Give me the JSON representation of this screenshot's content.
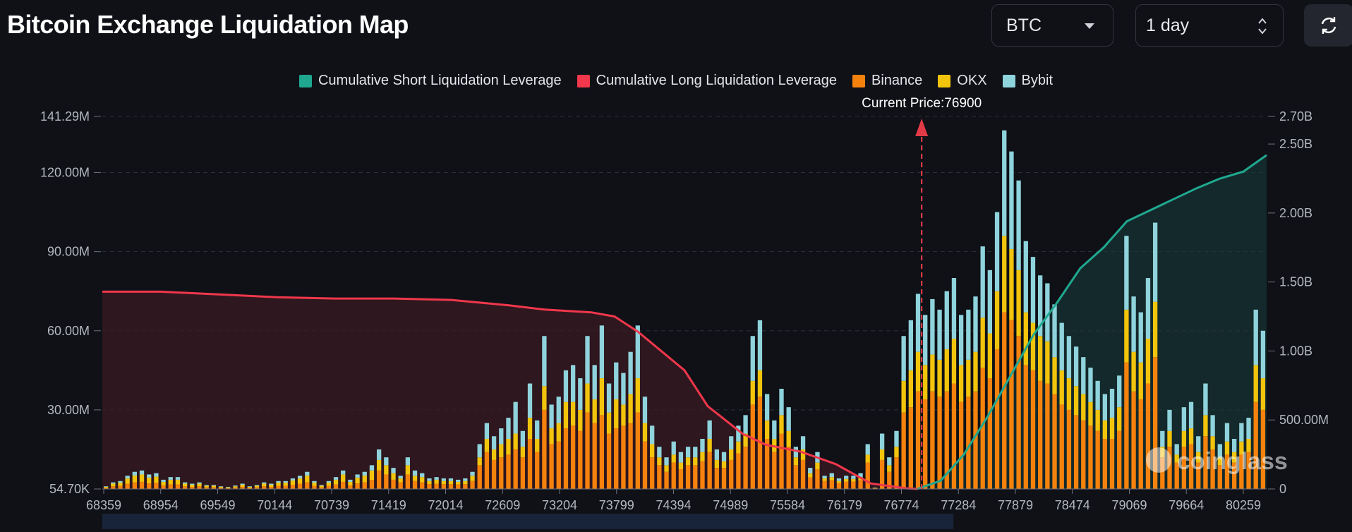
{
  "header": {
    "title": "Bitcoin Exchange Liquidation Map",
    "coin_select": "BTC",
    "range_select": "1 day"
  },
  "legend": [
    {
      "label": "Cumulative Short Liquidation Leverage",
      "color": "#1fa88f"
    },
    {
      "label": "Cumulative Long Liquidation Leverage",
      "color": "#f0374b"
    },
    {
      "label": "Binance",
      "color": "#f5820d"
    },
    {
      "label": "OKX",
      "color": "#f2c40c"
    },
    {
      "label": "Bybit",
      "color": "#8fd3dc"
    }
  ],
  "current_price_label": "Current Price:76900",
  "watermark": "coinglass",
  "chart_data": {
    "type": "bar",
    "left_axis_ticks": [
      "141.29M",
      "120.00M",
      "90.00M",
      "60.00M",
      "30.00M",
      "54.70K"
    ],
    "right_axis_ticks": [
      "2.70B",
      "2.50B",
      "2.00B",
      "1.50B",
      "1.00B",
      "500.00M",
      "0"
    ],
    "x_tick_labels": [
      "68359",
      "68954",
      "69549",
      "70144",
      "70739",
      "71419",
      "72014",
      "72609",
      "73204",
      "73799",
      "74394",
      "74989",
      "75584",
      "76179",
      "76774",
      "77284",
      "77879",
      "78474",
      "79069",
      "79664",
      "80259"
    ],
    "left_ylim": [
      0,
      141.29
    ],
    "left_unit": "M",
    "right_ylim": [
      0,
      2.7
    ],
    "right_unit": "B",
    "current_price": 76900,
    "bar_totals_M": [
      1,
      2.5,
      3,
      5,
      6.5,
      7,
      5.5,
      6,
      3.5,
      4.5,
      4.5,
      2.5,
      2,
      2.5,
      1.5,
      1.5,
      1,
      0.8,
      1.3,
      2,
      1,
      1.5,
      2.5,
      2,
      3,
      3,
      4,
      5,
      6.5,
      3,
      1.5,
      3,
      4.5,
      7,
      3.5,
      5.5,
      6.5,
      9,
      15,
      12,
      8,
      5,
      12,
      7,
      6,
      4,
      4.5,
      4,
      4,
      3.5,
      4,
      6.5,
      17,
      25,
      20,
      23,
      27,
      33,
      22,
      40,
      26,
      58,
      32,
      35,
      45,
      47,
      42,
      58,
      47,
      62,
      40,
      48,
      44,
      52,
      62,
      35,
      24,
      16,
      12,
      18,
      14,
      16,
      16,
      19,
      26,
      15,
      14,
      20,
      24,
      28,
      58,
      64,
      36,
      26,
      38,
      31,
      16,
      20,
      8,
      14,
      5,
      6,
      4,
      5,
      5,
      6,
      17,
      0.5,
      21,
      12,
      22,
      58,
      64,
      74,
      66,
      72,
      68,
      75,
      80,
      66,
      68,
      73,
      92,
      83,
      105,
      136,
      128,
      117,
      94,
      88,
      81,
      78,
      70,
      63,
      58,
      54,
      50,
      46,
      41,
      36,
      38,
      43,
      96,
      73,
      67,
      80,
      101,
      22,
      30,
      17,
      31,
      33,
      20,
      40,
      28,
      17,
      25,
      19,
      25,
      27,
      68,
      60
    ],
    "bar_okx_M": [
      0.4,
      1,
      1.2,
      2,
      2.6,
      2.8,
      2.2,
      2.4,
      1.4,
      1.8,
      1.8,
      1,
      0.8,
      1,
      0.6,
      0.6,
      0.4,
      0.3,
      0.5,
      0.8,
      0.4,
      0.6,
      1,
      0.8,
      1.2,
      1.2,
      1.6,
      2,
      2.6,
      1.2,
      0.6,
      1.2,
      1.8,
      2.8,
      1.4,
      2.2,
      2.6,
      3.6,
      4,
      3.5,
      2.5,
      1.5,
      3.5,
      2,
      2,
      1.2,
      1.5,
      1.2,
      1.2,
      1,
      1.2,
      2,
      3,
      5,
      4,
      5,
      6,
      6,
      4,
      8,
      5,
      9,
      6,
      7,
      10,
      9,
      8,
      11,
      9,
      14,
      8,
      11,
      8,
      11,
      13,
      7,
      5,
      3,
      2.5,
      3,
      2.5,
      3,
      3,
      3.5,
      5,
      3,
      2.5,
      4,
      4.5,
      5,
      9,
      10,
      7,
      5,
      7,
      6,
      3,
      4,
      1.6,
      2.5,
      1,
      1.2,
      0.8,
      1,
      1,
      1.2,
      3,
      0.1,
      4,
      2.5,
      4,
      12,
      14,
      15,
      13,
      14,
      14,
      16,
      17,
      14,
      14,
      15,
      19,
      17,
      22,
      29,
      27,
      25,
      20,
      18,
      17,
      16,
      14,
      13,
      12,
      11,
      10,
      9,
      8,
      7,
      8,
      9,
      20,
      15,
      14,
      17,
      21,
      4,
      6,
      3,
      6,
      6,
      4,
      8,
      5,
      3,
      5,
      4,
      5,
      5,
      14,
      12
    ],
    "bar_bybit_M": [
      0.2,
      0.5,
      0.6,
      1,
      1.4,
      1.5,
      1.2,
      1.3,
      0.8,
      1,
      1,
      0.5,
      0.4,
      0.5,
      0.3,
      0.3,
      0.2,
      0.2,
      0.3,
      0.4,
      0.2,
      0.3,
      0.5,
      0.4,
      0.6,
      0.6,
      0.8,
      1,
      1.4,
      0.6,
      0.3,
      0.6,
      1,
      1.5,
      0.8,
      1.2,
      1.4,
      2,
      4,
      3,
      2,
      1,
      3,
      2,
      1.5,
      1,
      1,
      1,
      1,
      0.8,
      1,
      1.5,
      5,
      6,
      5,
      6,
      8,
      12,
      6,
      13,
      7,
      19,
      9,
      10,
      12,
      14,
      12,
      18,
      13,
      20,
      11,
      14,
      12,
      16,
      20,
      10,
      7,
      4,
      3,
      5,
      4,
      4,
      4,
      5,
      7,
      4,
      3.5,
      5,
      6,
      7,
      17,
      19,
      10,
      7,
      10,
      9,
      4,
      5,
      2,
      4,
      1,
      1.5,
      1,
      1.2,
      1.2,
      1.5,
      4,
      0.1,
      6,
      3,
      6,
      17,
      19,
      22,
      19,
      21,
      19,
      22,
      23,
      19,
      19,
      21,
      27,
      24,
      30,
      40,
      37,
      34,
      27,
      25,
      23,
      22,
      20,
      18,
      16,
      15,
      14,
      13,
      11,
      10,
      11,
      12,
      28,
      21,
      19,
      23,
      30,
      6,
      8,
      4,
      9,
      10,
      6,
      12,
      8,
      5,
      7,
      5,
      7,
      8,
      21,
      18
    ],
    "series": [
      {
        "name": "Cumulative Long Liquidation Leverage",
        "unit": "B",
        "x_frac": [
          0,
          0.05,
          0.1,
          0.15,
          0.2,
          0.25,
          0.3,
          0.35,
          0.38,
          0.4,
          0.42,
          0.44,
          0.46,
          0.5,
          0.52,
          0.55,
          0.57,
          0.6,
          0.63,
          0.66,
          0.69,
          0.7
        ],
        "values": [
          1.43,
          1.43,
          1.41,
          1.39,
          1.38,
          1.38,
          1.37,
          1.33,
          1.3,
          1.29,
          1.28,
          1.25,
          1.14,
          0.86,
          0.6,
          0.4,
          0.32,
          0.27,
          0.18,
          0.04,
          0.005,
          0
        ]
      },
      {
        "name": "Cumulative Short Liquidation Leverage",
        "unit": "B",
        "x_frac": [
          0.7,
          0.72,
          0.74,
          0.76,
          0.78,
          0.8,
          0.82,
          0.84,
          0.86,
          0.88,
          0.9,
          0.92,
          0.94,
          0.96,
          0.98,
          1.0
        ],
        "values": [
          0,
          0.06,
          0.25,
          0.52,
          0.82,
          1.12,
          1.35,
          1.6,
          1.75,
          1.94,
          2.02,
          2.1,
          2.18,
          2.25,
          2.3,
          2.42
        ]
      }
    ]
  }
}
